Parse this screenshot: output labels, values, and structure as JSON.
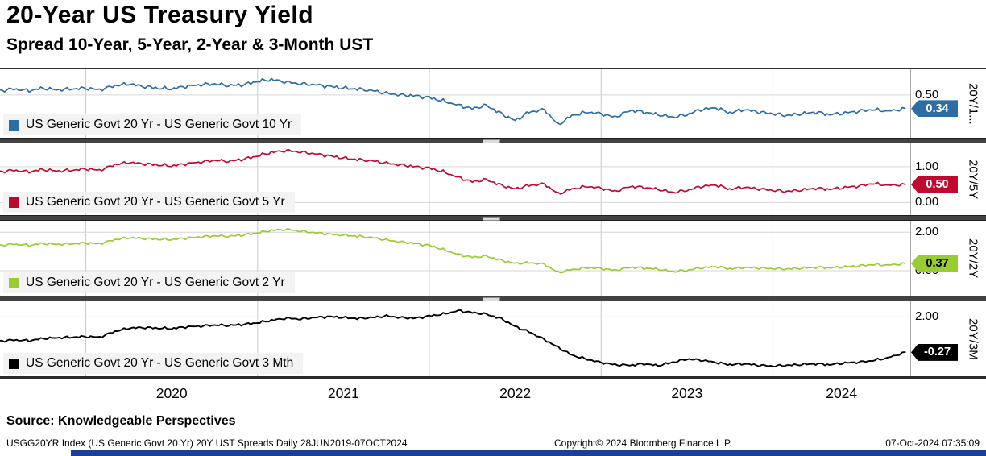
{
  "header": {
    "title": "20-Year US Treasury Yield",
    "subtitle": "Spread 10-Year, 5-Year, 2-Year & 3-Month UST"
  },
  "source": "Source: Knowledgeable Perspectives",
  "footer": {
    "left": "USGG20YR Index (US Generic Govt 20 Yr) 20Y UST Spreads Daily 28JUN2019-07OCT2024",
    "center": "Copyright© 2024 Bloomberg Finance L.P.",
    "right": "07-Oct-2024 07:35:09"
  },
  "colors": {
    "grid_vertical": "#c9c9c9",
    "grid_horizontal": "#d6d6d6",
    "separator": "#424242",
    "bottom_bar": "#1b3f94"
  },
  "chart_data": {
    "type": "line",
    "title": "20-Year US Treasury Yield",
    "subtitle": "Spread 10-Year, 5-Year, 2-Year & 3-Month UST",
    "frequency": "Daily 28JUN2019-07OCT2024",
    "x_unit": "decimal_year",
    "x_domain": [
      2019.5,
      2024.8
    ],
    "x_gridlines": [
      2020,
      2021,
      2022,
      2023,
      2024
    ],
    "x_tick_labels": [
      "2020",
      "2021",
      "2022",
      "2023",
      "2024"
    ],
    "x": [
      2019.5,
      2019.58,
      2019.67,
      2019.75,
      2019.83,
      2019.92,
      2020.0,
      2020.08,
      2020.17,
      2020.25,
      2020.33,
      2020.42,
      2020.5,
      2020.58,
      2020.67,
      2020.75,
      2020.83,
      2020.92,
      2021.0,
      2021.08,
      2021.17,
      2021.25,
      2021.33,
      2021.42,
      2021.5,
      2021.58,
      2021.67,
      2021.75,
      2021.83,
      2021.92,
      2022.0,
      2022.08,
      2022.17,
      2022.25,
      2022.33,
      2022.42,
      2022.5,
      2022.58,
      2022.67,
      2022.75,
      2022.83,
      2022.92,
      2023.0,
      2023.08,
      2023.17,
      2023.25,
      2023.33,
      2023.42,
      2023.5,
      2023.58,
      2023.67,
      2023.75,
      2023.83,
      2023.92,
      2024.0,
      2024.08,
      2024.17,
      2024.25,
      2024.33,
      2024.42,
      2024.5,
      2024.58,
      2024.67,
      2024.77
    ],
    "panels": [
      {
        "legend": "US Generic Govt 20 Yr - US Generic Govt 10 Yr",
        "axis_label": "20Y/1...",
        "color": "#2e6da4",
        "ylim": [
          0.0,
          0.8
        ],
        "yticks": [
          {
            "value": 0.5,
            "label": "0.50"
          }
        ],
        "last_value": 0.34,
        "last_label": "0.34",
        "badge_text_color": "#ffffff",
        "noise": 0.02,
        "y": [
          0.55,
          0.57,
          0.55,
          0.58,
          0.56,
          0.57,
          0.58,
          0.56,
          0.61,
          0.63,
          0.6,
          0.58,
          0.57,
          0.6,
          0.62,
          0.63,
          0.61,
          0.62,
          0.66,
          0.68,
          0.65,
          0.63,
          0.62,
          0.6,
          0.58,
          0.57,
          0.55,
          0.52,
          0.5,
          0.49,
          0.47,
          0.43,
          0.38,
          0.34,
          0.38,
          0.28,
          0.2,
          0.3,
          0.33,
          0.15,
          0.26,
          0.3,
          0.28,
          0.24,
          0.32,
          0.3,
          0.27,
          0.24,
          0.27,
          0.33,
          0.35,
          0.29,
          0.33,
          0.3,
          0.28,
          0.26,
          0.28,
          0.3,
          0.27,
          0.29,
          0.31,
          0.33,
          0.31,
          0.34
        ]
      },
      {
        "legend": "US Generic Govt 20 Yr - US Generic Govt 5 Yr",
        "axis_label": "20Y/5Y",
        "color": "#bf0a30",
        "ylim": [
          -0.35,
          1.65
        ],
        "yticks": [
          {
            "value": 1.0,
            "label": "1.00"
          },
          {
            "value": 0.0,
            "label": "0.00"
          }
        ],
        "last_value": 0.5,
        "last_label": "0.50",
        "badge_text_color": "#ffffff",
        "noise": 0.04,
        "y": [
          0.86,
          0.9,
          0.86,
          0.92,
          0.88,
          0.9,
          0.94,
          0.9,
          1.06,
          1.12,
          1.08,
          1.05,
          1.02,
          1.08,
          1.13,
          1.18,
          1.15,
          1.21,
          1.3,
          1.4,
          1.45,
          1.41,
          1.36,
          1.3,
          1.24,
          1.2,
          1.16,
          1.1,
          1.05,
          1.0,
          0.96,
          0.86,
          0.7,
          0.58,
          0.64,
          0.48,
          0.38,
          0.48,
          0.52,
          0.24,
          0.38,
          0.45,
          0.4,
          0.31,
          0.45,
          0.42,
          0.37,
          0.28,
          0.34,
          0.45,
          0.49,
          0.37,
          0.43,
          0.38,
          0.34,
          0.31,
          0.35,
          0.4,
          0.37,
          0.42,
          0.46,
          0.53,
          0.48,
          0.5
        ]
      },
      {
        "legend": "US Generic Govt 20 Yr - US Generic Govt 2 Yr",
        "axis_label": "20Y/2Y",
        "color": "#99cc33",
        "ylim": [
          -1.3,
          2.6
        ],
        "yticks": [
          {
            "value": 2.0,
            "label": "2.00"
          },
          {
            "value": 0.0,
            "label": "0.00"
          }
        ],
        "last_value": 0.37,
        "last_label": "0.37",
        "badge_text_color": "#000000",
        "noise": 0.06,
        "y": [
          1.32,
          1.38,
          1.32,
          1.42,
          1.37,
          1.4,
          1.44,
          1.4,
          1.62,
          1.72,
          1.68,
          1.64,
          1.62,
          1.7,
          1.76,
          1.82,
          1.79,
          1.86,
          1.97,
          2.1,
          2.15,
          2.06,
          1.98,
          1.9,
          1.85,
          1.8,
          1.72,
          1.6,
          1.5,
          1.41,
          1.32,
          1.1,
          0.84,
          0.7,
          0.76,
          0.54,
          0.38,
          0.42,
          0.34,
          -0.1,
          0.06,
          0.16,
          0.12,
          0.02,
          0.18,
          0.14,
          0.08,
          -0.05,
          0.02,
          0.15,
          0.21,
          0.1,
          0.17,
          0.14,
          0.11,
          0.09,
          0.13,
          0.18,
          0.15,
          0.2,
          0.25,
          0.32,
          0.29,
          0.37
        ]
      },
      {
        "legend": "US Generic Govt 20 Yr - US Generic Govt 3 Mth",
        "axis_label": "20Y/3M",
        "color": "#000000",
        "ylim": [
          -1.8,
          3.0
        ],
        "yticks": [
          {
            "value": 2.0,
            "label": "2.00"
          }
        ],
        "last_value": -0.27,
        "last_label": "-0.27",
        "badge_text_color": "#ffffff",
        "noise": 0.07,
        "y": [
          0.45,
          0.52,
          0.48,
          0.62,
          0.66,
          0.7,
          0.74,
          0.7,
          1.08,
          1.28,
          1.32,
          1.28,
          1.25,
          1.36,
          1.41,
          1.48,
          1.45,
          1.52,
          1.62,
          1.78,
          1.92,
          1.86,
          1.96,
          2.02,
          1.96,
          1.9,
          1.96,
          2.06,
          1.96,
          1.92,
          2.06,
          2.18,
          2.4,
          2.28,
          2.18,
          1.88,
          1.38,
          1.05,
          0.55,
          0.05,
          -0.45,
          -0.72,
          -0.92,
          -1.06,
          -1.1,
          -1.0,
          -1.12,
          -0.9,
          -0.7,
          -0.76,
          -0.92,
          -1.06,
          -1.0,
          -1.1,
          -1.15,
          -1.1,
          -1.05,
          -1.0,
          -1.06,
          -0.95,
          -0.9,
          -0.8,
          -0.62,
          -0.27
        ]
      }
    ]
  }
}
